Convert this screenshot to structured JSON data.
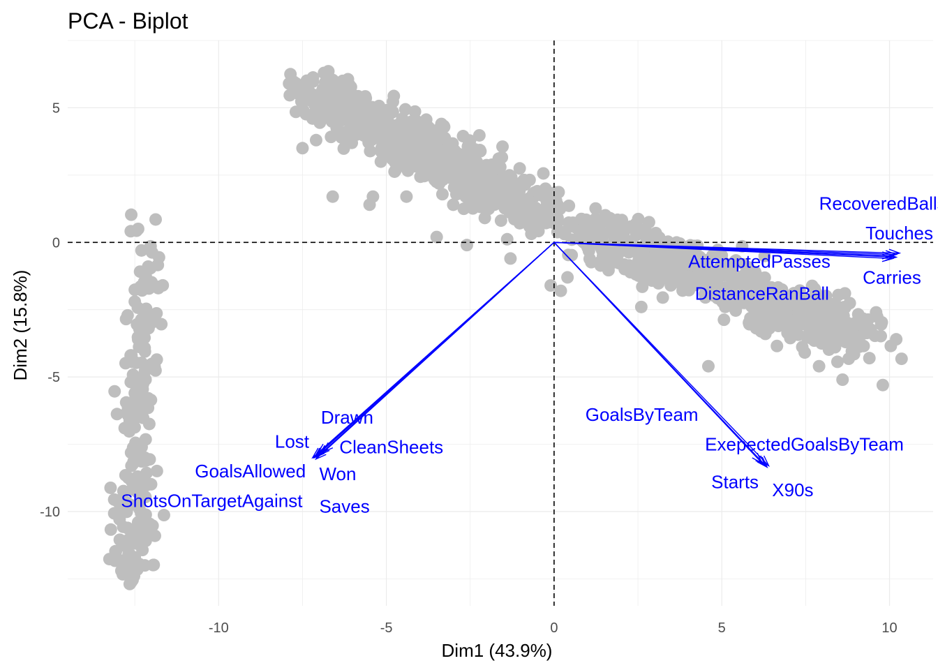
{
  "chart_data": {
    "type": "scatter",
    "title": "PCA - Biplot",
    "xlabel": "Dim1 (43.9%)",
    "ylabel": "Dim2 (15.8%)",
    "xlim": [
      -14.5,
      11.3
    ],
    "ylim": [
      -13.5,
      7.5
    ],
    "x_ticks": [
      -10,
      -5,
      0,
      5,
      10
    ],
    "y_ticks": [
      5,
      0,
      -5,
      -10
    ],
    "x_tick_labels": [
      "-10",
      "-5",
      "0",
      "5",
      "10"
    ],
    "y_tick_labels": [
      "5",
      "0",
      "-5",
      "-10"
    ],
    "grid": true,
    "reference_lines": {
      "x": 0,
      "y": 0,
      "style": "dashed"
    },
    "point_color": "#bebebe",
    "arrow_color": "#0000ff",
    "point_clusters": [
      {
        "points": [
          [
            -12.4,
            0.5
          ],
          [
            -12.3,
            -0.3
          ],
          [
            -12.1,
            -0.9
          ],
          [
            -11.8,
            -1.7
          ],
          [
            -12.5,
            -2.2
          ],
          [
            -12.2,
            -3.0
          ],
          [
            -12.4,
            -3.6
          ],
          [
            -12.6,
            -4.2
          ],
          [
            -12.2,
            -4.8
          ],
          [
            -12.5,
            -5.6
          ],
          [
            -12.3,
            -6.3
          ],
          [
            -12.7,
            -6.9
          ],
          [
            -12.4,
            -7.6
          ],
          [
            -12.6,
            -8.3
          ],
          [
            -12.3,
            -9.0
          ],
          [
            -12.7,
            -9.7
          ],
          [
            -12.4,
            -10.4
          ],
          [
            -11.9,
            -10.9
          ],
          [
            -12.8,
            -11.1
          ],
          [
            -12.5,
            -11.7
          ],
          [
            -12.9,
            -12.2
          ],
          [
            -12.6,
            -12.6
          ],
          [
            -12.2,
            -12.0
          ],
          [
            -12.8,
            -10.0
          ],
          [
            -12.2,
            -8.0
          ]
        ],
        "spread": [
          0.25,
          0.45
        ],
        "count": 170
      },
      {
        "points": [
          [
            -7.3,
            5.6
          ],
          [
            -6.6,
            5.1
          ],
          [
            -5.8,
            4.6
          ],
          [
            -5.0,
            4.1
          ],
          [
            -4.2,
            3.6
          ],
          [
            -3.4,
            3.1
          ],
          [
            -2.6,
            2.6
          ],
          [
            -1.8,
            2.1
          ],
          [
            -1.0,
            1.6
          ],
          [
            -0.2,
            1.1
          ]
        ],
        "spread": [
          0.45,
          0.5
        ],
        "count": 640
      },
      {
        "points": [
          [
            0.6,
            0.7
          ],
          [
            1.4,
            0.3
          ],
          [
            2.2,
            -0.2
          ],
          [
            3.0,
            -0.6
          ],
          [
            3.8,
            -0.9
          ],
          [
            4.6,
            -1.2
          ],
          [
            5.4,
            -1.6
          ],
          [
            6.2,
            -2.2
          ],
          [
            7.0,
            -2.7
          ],
          [
            7.8,
            -3.0
          ],
          [
            8.6,
            -3.0
          ],
          [
            9.2,
            -3.4
          ]
        ],
        "spread": [
          0.45,
          0.5
        ],
        "count": 620
      },
      {
        "points": [
          [
            -7.9,
            5.9
          ],
          [
            -7.4,
            5.8
          ],
          [
            -6.3,
            6.0
          ],
          [
            -7.2,
            4.6
          ],
          [
            -7.5,
            3.5
          ],
          [
            -5.4,
            1.7
          ],
          [
            -4.4,
            1.7
          ],
          [
            -5.5,
            1.4
          ],
          [
            -6.6,
            1.7
          ],
          [
            -3.5,
            0.2
          ],
          [
            -2.6,
            -0.1
          ],
          [
            -1.3,
            -0.6
          ],
          [
            -0.1,
            -1.6
          ],
          [
            0.2,
            -1.8
          ],
          [
            0.4,
            -1.3
          ],
          [
            2.6,
            -2.4
          ],
          [
            4.7,
            -1.8
          ],
          [
            6.0,
            -1.7
          ],
          [
            9.6,
            -2.6
          ],
          [
            10.2,
            -3.6
          ],
          [
            9.8,
            -5.3
          ],
          [
            8.6,
            -5.1
          ],
          [
            7.9,
            -4.6
          ],
          [
            4.6,
            -4.6
          ],
          [
            6.3,
            -3.4
          ],
          [
            9.4,
            -4.3
          ],
          [
            8.9,
            -3.5
          ]
        ],
        "spread": [
          0.0,
          0.0
        ],
        "count": 0
      }
    ],
    "variables": [
      {
        "name": "RecoveredBalls",
        "x": 10.2,
        "y": -0.45,
        "label_x": 7.9,
        "label_y": 1.45,
        "align": "start"
      },
      {
        "name": "Touches",
        "x": 10.3,
        "y": -0.4,
        "label_x": 11.3,
        "label_y": 0.35,
        "align": "end"
      },
      {
        "name": "AttemptedPasses",
        "x": 10.1,
        "y": -0.6,
        "label_x": 4.0,
        "label_y": -0.7,
        "align": "start"
      },
      {
        "name": "Carries",
        "x": 10.2,
        "y": -0.55,
        "label_x": 9.2,
        "label_y": -1.3,
        "align": "start"
      },
      {
        "name": "DistanceRanBall",
        "x": 10.1,
        "y": -0.5,
        "label_x": 4.2,
        "label_y": -1.9,
        "align": "start"
      },
      {
        "name": "Drawn",
        "x": -7.0,
        "y": -7.9,
        "label_x": -6.95,
        "label_y": -6.5,
        "align": "start"
      },
      {
        "name": "Lost",
        "x": -7.1,
        "y": -7.95,
        "label_x": -7.3,
        "label_y": -7.4,
        "align": "end"
      },
      {
        "name": "CleanSheets",
        "x": -6.9,
        "y": -7.8,
        "label_x": -6.4,
        "label_y": -7.6,
        "align": "start"
      },
      {
        "name": "GoalsAllowed",
        "x": -7.15,
        "y": -8.0,
        "label_x": -7.4,
        "label_y": -8.5,
        "align": "end"
      },
      {
        "name": "Won",
        "x": -7.05,
        "y": -7.85,
        "label_x": -7.0,
        "label_y": -8.6,
        "align": "start"
      },
      {
        "name": "ShotsOnTargetAgainst",
        "x": -7.2,
        "y": -8.0,
        "label_x": -7.5,
        "label_y": -9.6,
        "align": "end"
      },
      {
        "name": "Saves",
        "x": -7.1,
        "y": -8.05,
        "label_x": -7.0,
        "label_y": -9.8,
        "align": "start"
      },
      {
        "name": "GoalsByTeam",
        "x": 6.3,
        "y": -8.3,
        "label_x": 4.3,
        "label_y": -6.4,
        "align": "end"
      },
      {
        "name": "ExepectedGoalsByTeam",
        "x": 6.2,
        "y": -8.2,
        "label_x": 4.5,
        "label_y": -7.5,
        "align": "start"
      },
      {
        "name": "Starts",
        "x": 6.35,
        "y": -8.35,
        "label_x": 6.1,
        "label_y": -8.9,
        "align": "end"
      },
      {
        "name": "X90s",
        "x": 6.4,
        "y": -8.3,
        "label_x": 6.5,
        "label_y": -9.2,
        "align": "start"
      }
    ]
  }
}
